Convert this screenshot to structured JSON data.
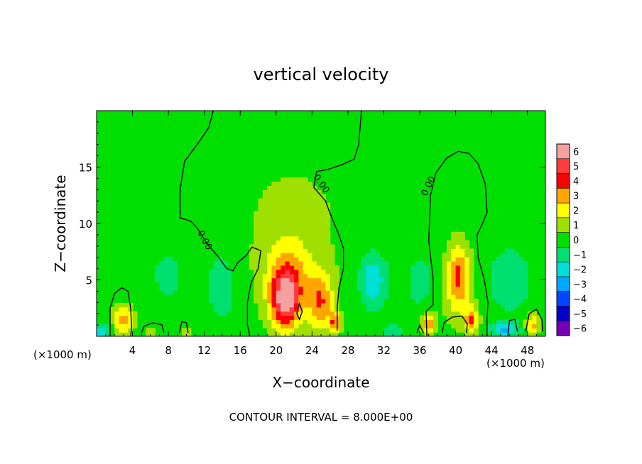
{
  "chart_data": {
    "type": "heatmap",
    "title": "vertical velocity",
    "xlabel": "X−coordinate",
    "ylabel": "Z−coordinate",
    "x_unit_left": "(×1000 m)",
    "x_unit_right": "(×1000 m)",
    "footer": "CONTOUR INTERVAL = 8.000E+00",
    "contour_label": "0.00",
    "xlim": [
      0,
      50
    ],
    "ylim": [
      0,
      20
    ],
    "x_ticks": [
      4,
      8,
      12,
      16,
      20,
      24,
      28,
      32,
      36,
      40,
      44,
      48
    ],
    "x_tick_labels": [
      "4",
      "8",
      "12",
      "16",
      "20",
      "24",
      "28",
      "32",
      "36",
      "40",
      "44",
      "48"
    ],
    "y_ticks": [
      5,
      10,
      15
    ],
    "y_tick_labels": [
      "5",
      "10",
      "15"
    ],
    "colorbar": {
      "ticks": [
        6,
        5,
        4,
        3,
        2,
        1,
        0,
        -1,
        -2,
        -3,
        -4,
        -5,
        -6
      ],
      "tick_labels": [
        "6",
        "5",
        "4",
        "3",
        "2",
        "1",
        "0",
        "−1",
        "−2",
        "−3",
        "−4",
        "−5",
        "−6"
      ],
      "colors": [
        "#f4a0a0",
        "#ff3c3c",
        "#ff0000",
        "#ffa500",
        "#ffff00",
        "#a0e000",
        "#00e000",
        "#00e070",
        "#00e0d8",
        "#00a8ff",
        "#0046ff",
        "#0000c8",
        "#7800b4"
      ]
    },
    "features": [
      {
        "x": 21.0,
        "z": 3.2,
        "sx": 1.1,
        "sz": 1.8,
        "amp": 5.0
      },
      {
        "x": 21.5,
        "z": 5.2,
        "sx": 2.0,
        "sz": 2.6,
        "amp": 2.5
      },
      {
        "x": 25.0,
        "z": 3.0,
        "sx": 1.0,
        "sz": 1.8,
        "amp": 3.2
      },
      {
        "x": 40.3,
        "z": 5.8,
        "sx": 0.9,
        "sz": 1.8,
        "amp": 3.0
      },
      {
        "x": 40.3,
        "z": 3.5,
        "sx": 1.2,
        "sz": 2.0,
        "amp": 1.5
      },
      {
        "x": 3.0,
        "z": 1.5,
        "sx": 0.8,
        "sz": 0.9,
        "amp": 3.0
      },
      {
        "x": 26.5,
        "z": 1.2,
        "sx": 0.4,
        "sz": 0.7,
        "amp": 3.2
      },
      {
        "x": 37.0,
        "z": 1.2,
        "sx": 0.5,
        "sz": 0.7,
        "amp": 3.5
      },
      {
        "x": 41.8,
        "z": 1.4,
        "sx": 0.5,
        "sz": 0.8,
        "amp": 3.5
      },
      {
        "x": 48.5,
        "z": 1.0,
        "sx": 0.5,
        "sz": 0.7,
        "amp": 3.0
      },
      {
        "x": 22.0,
        "z": 11.0,
        "sx": 6.0,
        "sz": 5.0,
        "amp": 0.6
      },
      {
        "x": 30.8,
        "z": 5.0,
        "sx": 1.0,
        "sz": 1.6,
        "amp": -2.5
      },
      {
        "x": 14.0,
        "z": 4.5,
        "sx": 1.2,
        "sz": 2.5,
        "amp": -1.0
      },
      {
        "x": 46.0,
        "z": 5.0,
        "sx": 2.0,
        "sz": 2.5,
        "amp": -0.9
      },
      {
        "x": 8.0,
        "z": 5.5,
        "sx": 2.5,
        "sz": 3.0,
        "amp": -0.6
      },
      {
        "x": 36.0,
        "z": 5.0,
        "sx": 1.5,
        "sz": 2.5,
        "amp": -0.7
      },
      {
        "x": 45.5,
        "z": 0.6,
        "sx": 1.0,
        "sz": 0.4,
        "amp": -2.5
      },
      {
        "x": 0.6,
        "z": 0.5,
        "sx": 0.6,
        "sz": 0.4,
        "amp": -2.5
      },
      {
        "x": 33.0,
        "z": 0.5,
        "sx": 0.6,
        "sz": 0.4,
        "amp": -1.5
      },
      {
        "x": 10.0,
        "z": 0.5,
        "sx": 0.5,
        "sz": 0.4,
        "amp": 1.0
      },
      {
        "x": 6.0,
        "z": 0.5,
        "sx": 0.6,
        "sz": 0.4,
        "amp": 1.0
      }
    ],
    "contours_zero": [
      [
        [
          13.0,
          20.0
        ],
        [
          12.5,
          18.5
        ],
        [
          11.2,
          17.0
        ],
        [
          9.8,
          15.5
        ],
        [
          9.3,
          13.0
        ],
        [
          9.3,
          10.5
        ],
        [
          10.5,
          10.2
        ],
        [
          11.3,
          9.5
        ],
        [
          12.3,
          8.2
        ],
        [
          13.5,
          7.1
        ],
        [
          14.5,
          6.0
        ],
        [
          15.2,
          5.8
        ],
        [
          15.7,
          6.5
        ],
        [
          16.7,
          7.2
        ],
        [
          17.3,
          7.9
        ],
        [
          18.3,
          7.6
        ],
        [
          18.0,
          6.0
        ],
        [
          17.2,
          4.7
        ],
        [
          16.8,
          3.0
        ],
        [
          16.8,
          1.0
        ],
        [
          17.1,
          0.0
        ]
      ],
      [
        [
          29.5,
          20.0
        ],
        [
          29.2,
          17.0
        ],
        [
          28.7,
          15.7
        ],
        [
          27.3,
          15.2
        ],
        [
          25.8,
          14.8
        ],
        [
          24.5,
          14.6
        ],
        [
          24.2,
          13.2
        ],
        [
          25.5,
          12.0
        ],
        [
          26.2,
          10.5
        ],
        [
          26.9,
          9.2
        ],
        [
          27.5,
          7.8
        ],
        [
          27.5,
          6.0
        ],
        [
          27.0,
          4.3
        ],
        [
          26.8,
          2.5
        ],
        [
          26.8,
          0.5
        ]
      ],
      [
        [
          36.8,
          0.0
        ],
        [
          36.7,
          2.2
        ],
        [
          37.5,
          2.8
        ],
        [
          37.5,
          5.0
        ],
        [
          37.0,
          8.5
        ],
        [
          37.2,
          12.5
        ],
        [
          37.8,
          14.5
        ],
        [
          39.0,
          15.8
        ],
        [
          40.3,
          16.4
        ],
        [
          41.5,
          16.2
        ],
        [
          42.5,
          15.3
        ],
        [
          43.3,
          13.5
        ],
        [
          43.5,
          11.0
        ],
        [
          43.0,
          10.0
        ],
        [
          42.4,
          9.0
        ],
        [
          42.5,
          7.0
        ],
        [
          43.2,
          5.0
        ],
        [
          43.6,
          3.0
        ],
        [
          43.5,
          1.5
        ],
        [
          43.5,
          0.0
        ]
      ],
      [
        [
          1.5,
          0.0
        ],
        [
          1.5,
          2.5
        ],
        [
          2.0,
          3.8
        ],
        [
          2.8,
          4.3
        ],
        [
          3.5,
          4.0
        ],
        [
          3.8,
          2.5
        ],
        [
          3.9,
          0.8
        ],
        [
          3.8,
          0.0
        ]
      ],
      [
        [
          22.3,
          2.0
        ],
        [
          22.6,
          2.9
        ],
        [
          22.9,
          2.2
        ],
        [
          22.6,
          1.5
        ],
        [
          22.3,
          2.0
        ]
      ],
      [
        [
          35.7,
          0.3
        ],
        [
          36.0,
          1.0
        ],
        [
          36.4,
          0.3
        ]
      ],
      [
        [
          38.5,
          0.3
        ],
        [
          38.7,
          1.2
        ],
        [
          39.6,
          1.7
        ],
        [
          40.7,
          1.8
        ],
        [
          41.3,
          1.1
        ],
        [
          41.2,
          0.3
        ]
      ],
      [
        [
          45.8,
          0.0
        ],
        [
          46.0,
          1.4
        ],
        [
          46.6,
          1.5
        ],
        [
          46.9,
          0.4
        ]
      ],
      [
        [
          47.8,
          0.4
        ],
        [
          48.2,
          2.0
        ],
        [
          49.0,
          2.4
        ],
        [
          49.6,
          1.5
        ],
        [
          49.7,
          0.4
        ]
      ],
      [
        [
          5.0,
          0.3
        ],
        [
          5.3,
          0.9
        ],
        [
          6.3,
          1.2
        ],
        [
          7.3,
          1.0
        ],
        [
          7.5,
          0.3
        ]
      ],
      [
        [
          9.2,
          0.3
        ],
        [
          9.5,
          1.3
        ],
        [
          10.0,
          1.2
        ],
        [
          10.2,
          0.3
        ]
      ]
    ],
    "contour_labels": [
      {
        "x": 12.0,
        "z": 8.5,
        "angle": 62
      },
      {
        "x": 25.0,
        "z": 13.5,
        "angle": 55
      },
      {
        "x": 37.0,
        "z": 13.3,
        "angle": -65
      }
    ]
  }
}
